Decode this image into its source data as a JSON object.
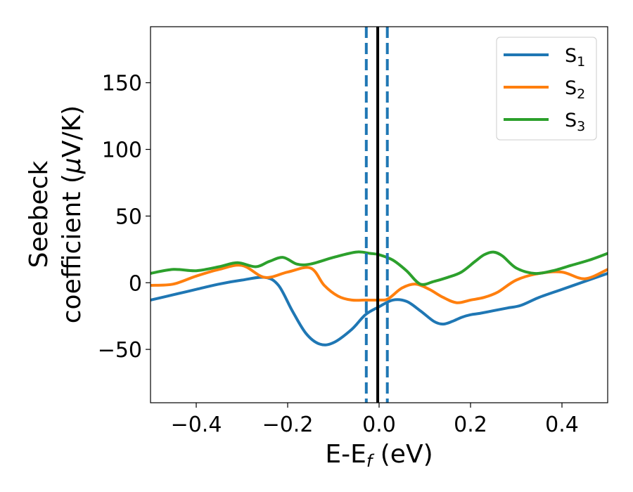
{
  "chart_data": {
    "type": "line",
    "title": "",
    "xlabel": {
      "main": "E-E",
      "sub": "f",
      "tail": " (eV)"
    },
    "ylabel": {
      "line1": "Seebeck",
      "line2_pre": "coefficient  (",
      "line2_mu": "μ",
      "line2_post": "V/K)"
    },
    "xlim": [
      -0.5,
      0.5
    ],
    "ylim": [
      -90,
      192
    ],
    "xticks": [
      -0.4,
      -0.2,
      0.0,
      0.2,
      0.4
    ],
    "xtick_labels": [
      "−0.4",
      "−0.2",
      "0.0",
      "0.2",
      "0.4"
    ],
    "yticks": [
      -50,
      0,
      50,
      100,
      150
    ],
    "ytick_labels": [
      "−50",
      "0",
      "50",
      "100",
      "150"
    ],
    "grid": false,
    "legend_position": "top-right",
    "series": [
      {
        "name": "S",
        "name_sub": "1",
        "color": "#1f77b4",
        "x": [
          -0.5,
          -0.45,
          -0.4,
          -0.35,
          -0.3,
          -0.25,
          -0.22,
          -0.19,
          -0.16,
          -0.13,
          -0.1,
          -0.06,
          -0.03,
          0.0,
          0.03,
          0.06,
          0.09,
          0.12,
          0.14,
          0.16,
          0.18,
          0.2,
          0.22,
          0.25,
          0.28,
          0.31,
          0.35,
          0.4,
          0.45,
          0.5
        ],
        "y": [
          -13,
          -9,
          -5,
          -1,
          2,
          4,
          -2,
          -21,
          -38,
          -46,
          -45,
          -35,
          -24,
          -18,
          -13,
          -14,
          -21,
          -29,
          -31,
          -29,
          -26,
          -24,
          -23,
          -21,
          -19,
          -17,
          -11,
          -5,
          1,
          7
        ]
      },
      {
        "name": "S",
        "name_sub": "2",
        "color": "#ff7f0e",
        "x": [
          -0.5,
          -0.45,
          -0.4,
          -0.35,
          -0.3,
          -0.25,
          -0.2,
          -0.15,
          -0.12,
          -0.09,
          -0.06,
          -0.03,
          0.0,
          0.02,
          0.05,
          0.08,
          0.11,
          0.14,
          0.17,
          0.2,
          0.23,
          0.26,
          0.3,
          0.35,
          0.4,
          0.45,
          0.5
        ],
        "y": [
          -2,
          -1,
          5,
          10,
          13,
          4,
          8,
          11,
          -2,
          -10,
          -13,
          -13,
          -13,
          -12,
          -4,
          -1,
          -5,
          -11,
          -15,
          -13,
          -11,
          -7,
          2,
          7,
          8,
          3,
          10
        ]
      },
      {
        "name": "S",
        "name_sub": "3",
        "color": "#2ca02c",
        "x": [
          -0.5,
          -0.45,
          -0.4,
          -0.35,
          -0.31,
          -0.27,
          -0.24,
          -0.21,
          -0.18,
          -0.15,
          -0.1,
          -0.05,
          -0.02,
          0.0,
          0.03,
          0.06,
          0.09,
          0.12,
          0.15,
          0.18,
          0.21,
          0.23,
          0.25,
          0.27,
          0.3,
          0.34,
          0.38,
          0.42,
          0.46,
          0.5
        ],
        "y": [
          7,
          10,
          9,
          12,
          15,
          12,
          16,
          19,
          14,
          14,
          19,
          23,
          22,
          21,
          17,
          9,
          -1,
          1,
          4,
          8,
          16,
          21,
          23,
          20,
          11,
          7,
          9,
          13,
          17,
          22
        ]
      }
    ],
    "vertical_lines": [
      {
        "x": -0.028,
        "style": "dashed",
        "color": "#1f77b4"
      },
      {
        "x": 0.018,
        "style": "dashed",
        "color": "#1f77b4"
      },
      {
        "x": -0.003,
        "style": "solid",
        "color": "#000000"
      }
    ]
  }
}
